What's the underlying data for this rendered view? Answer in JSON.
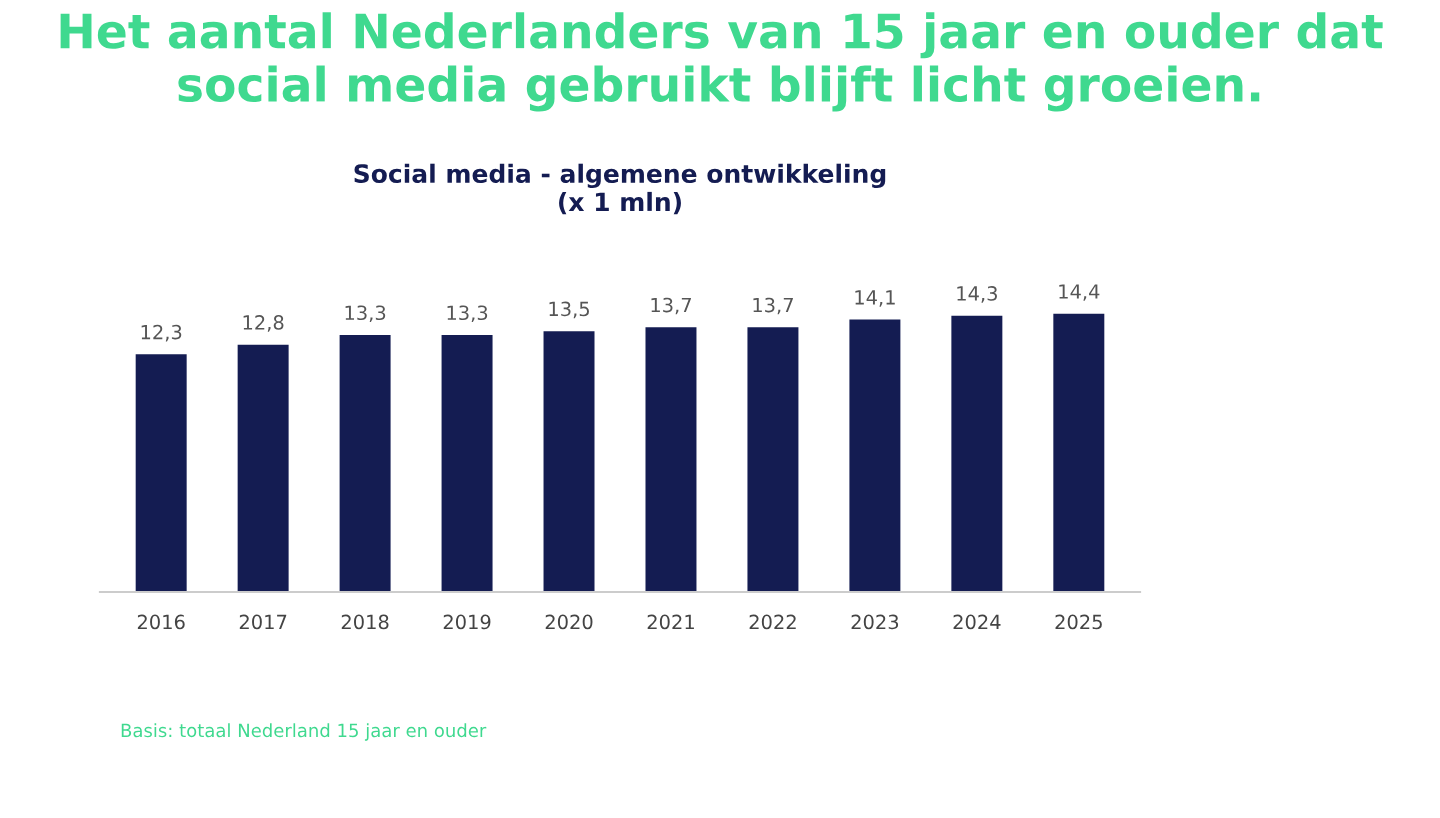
{
  "chart_data": {
    "type": "bar",
    "title": "Het aantal Nederlanders van 15 jaar en ouder dat social media gebruikt blijft licht groeien.",
    "subtitle": "Social media - algemene ontwikkeling\n(x 1 mln)",
    "categories": [
      "2016",
      "2017",
      "2018",
      "2019",
      "2020",
      "2021",
      "2022",
      "2023",
      "2024",
      "2025"
    ],
    "values": [
      12.3,
      12.8,
      13.3,
      13.3,
      13.5,
      13.7,
      13.7,
      14.1,
      14.3,
      14.4
    ],
    "value_labels": [
      "12,3",
      "12,8",
      "13,3",
      "13,3",
      "13,5",
      "13,7",
      "13,7",
      "14,1",
      "14,3",
      "14,4"
    ],
    "color": "#141c52",
    "annotations": [
      "Basis: totaal Nederland 15 jaar en ouder"
    ],
    "grid": false,
    "legend": false
  }
}
